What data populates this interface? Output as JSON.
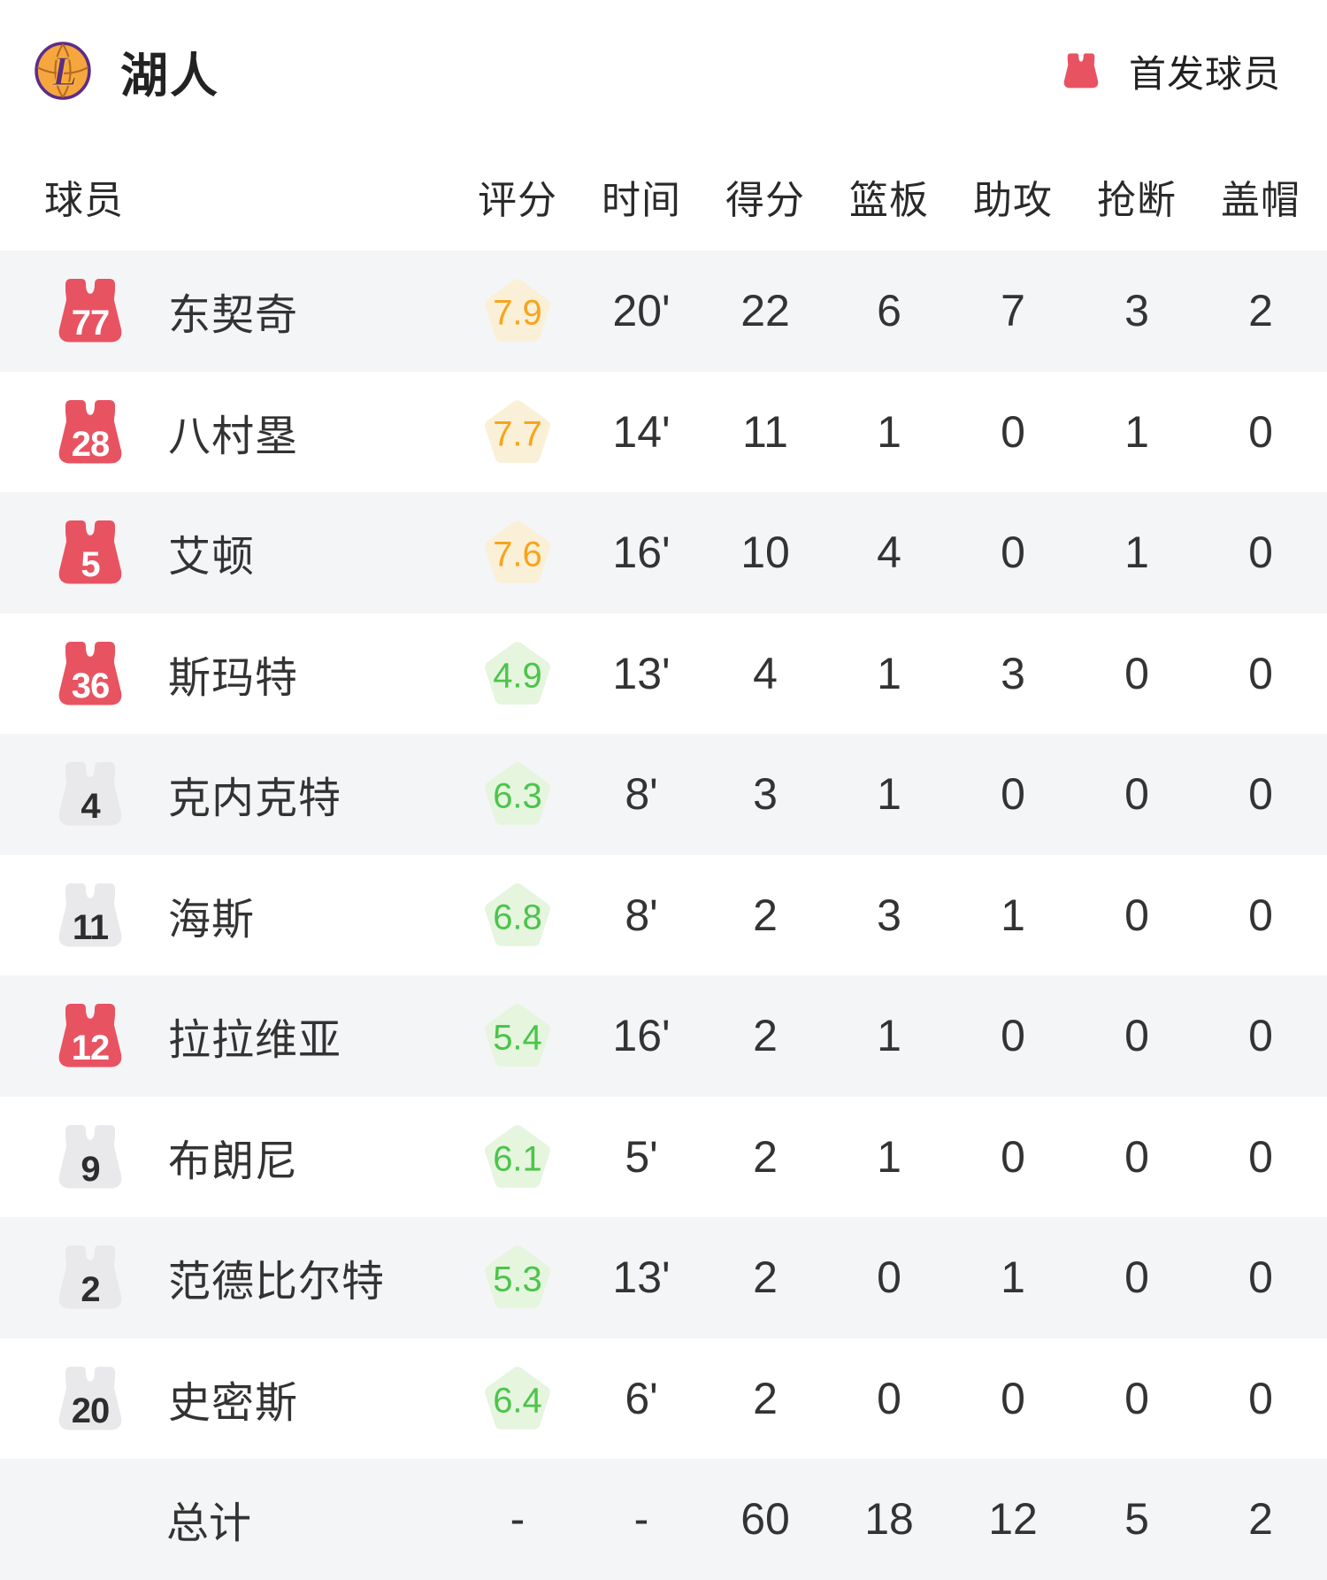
{
  "team_header": {
    "team_name": "湖人",
    "legend_label": "首发球员"
  },
  "table": {
    "columns": [
      "球员",
      "评分",
      "时间",
      "得分",
      "篮板",
      "助攻",
      "抢断",
      "盖帽"
    ],
    "players": [
      {
        "number": "77",
        "name": "东契奇",
        "starter": true,
        "rating": "7.9",
        "rating_tone": "orange",
        "time": "20'",
        "points": "22",
        "rebounds": "6",
        "assists": "7",
        "steals": "3",
        "blocks": "2"
      },
      {
        "number": "28",
        "name": "八村塁",
        "starter": true,
        "rating": "7.7",
        "rating_tone": "orange",
        "time": "14'",
        "points": "11",
        "rebounds": "1",
        "assists": "0",
        "steals": "1",
        "blocks": "0"
      },
      {
        "number": "5",
        "name": "艾顿",
        "starter": true,
        "rating": "7.6",
        "rating_tone": "orange",
        "time": "16'",
        "points": "10",
        "rebounds": "4",
        "assists": "0",
        "steals": "1",
        "blocks": "0"
      },
      {
        "number": "36",
        "name": "斯玛特",
        "starter": true,
        "rating": "4.9",
        "rating_tone": "green",
        "time": "13'",
        "points": "4",
        "rebounds": "1",
        "assists": "3",
        "steals": "0",
        "blocks": "0"
      },
      {
        "number": "4",
        "name": "克内克特",
        "starter": false,
        "rating": "6.3",
        "rating_tone": "green",
        "time": "8'",
        "points": "3",
        "rebounds": "1",
        "assists": "0",
        "steals": "0",
        "blocks": "0"
      },
      {
        "number": "11",
        "name": "海斯",
        "starter": false,
        "rating": "6.8",
        "rating_tone": "green",
        "time": "8'",
        "points": "2",
        "rebounds": "3",
        "assists": "1",
        "steals": "0",
        "blocks": "0"
      },
      {
        "number": "12",
        "name": "拉拉维亚",
        "starter": true,
        "rating": "5.4",
        "rating_tone": "green",
        "time": "16'",
        "points": "2",
        "rebounds": "1",
        "assists": "0",
        "steals": "0",
        "blocks": "0"
      },
      {
        "number": "9",
        "name": "布朗尼",
        "starter": false,
        "rating": "6.1",
        "rating_tone": "green",
        "time": "5'",
        "points": "2",
        "rebounds": "1",
        "assists": "0",
        "steals": "0",
        "blocks": "0"
      },
      {
        "number": "2",
        "name": "范德比尔特",
        "starter": false,
        "rating": "5.3",
        "rating_tone": "green",
        "time": "13'",
        "points": "2",
        "rebounds": "0",
        "assists": "1",
        "steals": "0",
        "blocks": "0"
      },
      {
        "number": "20",
        "name": "史密斯",
        "starter": false,
        "rating": "6.4",
        "rating_tone": "green",
        "time": "6'",
        "points": "2",
        "rebounds": "0",
        "assists": "0",
        "steals": "0",
        "blocks": "0"
      }
    ],
    "totals": {
      "label": "总计",
      "rating": "-",
      "time": "-",
      "points": "60",
      "rebounds": "18",
      "assists": "12",
      "steals": "5",
      "blocks": "2"
    }
  },
  "colors": {
    "starter_red": "#e85362",
    "bench_gray": "#e9e9eb",
    "rating_high_text": "#f8a41b",
    "rating_high_bg": "#faf0d7",
    "rating_low_text": "#4cc44c",
    "rating_low_bg": "#e5f5de",
    "row_stripe": "#f4f5f7",
    "logo_ball": "#f6a63e",
    "logo_purple": "#5c2d87",
    "logo_gold": "#fdb927"
  }
}
